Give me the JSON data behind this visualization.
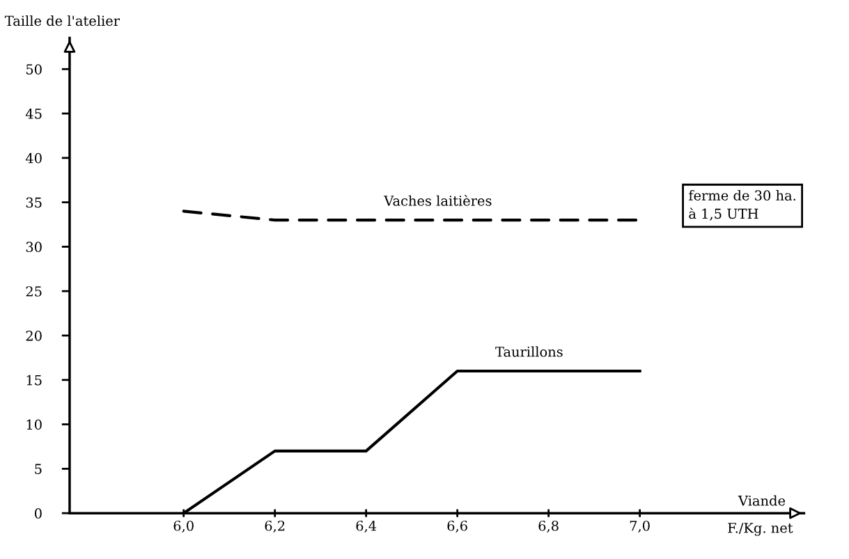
{
  "chart_data": {
    "type": "line",
    "ylabel": "Taille de l'atelier",
    "xlabel": "F./Kg. net",
    "annotations": [
      "Viande",
      "ferme de 30 ha.\nà 1,5 UTH"
    ],
    "xlim": [
      5.75,
      7.36
    ],
    "ylim": [
      0,
      53.5
    ],
    "xticks": [
      {
        "value": 6.0,
        "label": "6,0"
      },
      {
        "value": 6.2,
        "label": "6,2"
      },
      {
        "value": 6.4,
        "label": "6,4"
      },
      {
        "value": 6.6,
        "label": "6,6"
      },
      {
        "value": 6.8,
        "label": "6,8"
      },
      {
        "value": 7.0,
        "label": "7,0"
      }
    ],
    "yticks": [
      0,
      5,
      10,
      15,
      20,
      25,
      30,
      35,
      40,
      45,
      50
    ],
    "grid": false,
    "legend": false,
    "marker": "none",
    "series": [
      {
        "name": "Vaches laitières",
        "color": "#000000",
        "line_style": "dashed",
        "x": [
          6.0,
          6.2,
          7.0
        ],
        "values": [
          34,
          33,
          33
        ]
      },
      {
        "name": "Taurillons",
        "color": "#000000",
        "line_style": "solid",
        "x": [
          6.0,
          6.2,
          6.4,
          6.6,
          7.0
        ],
        "values": [
          0,
          7,
          7,
          16,
          16
        ]
      }
    ]
  }
}
